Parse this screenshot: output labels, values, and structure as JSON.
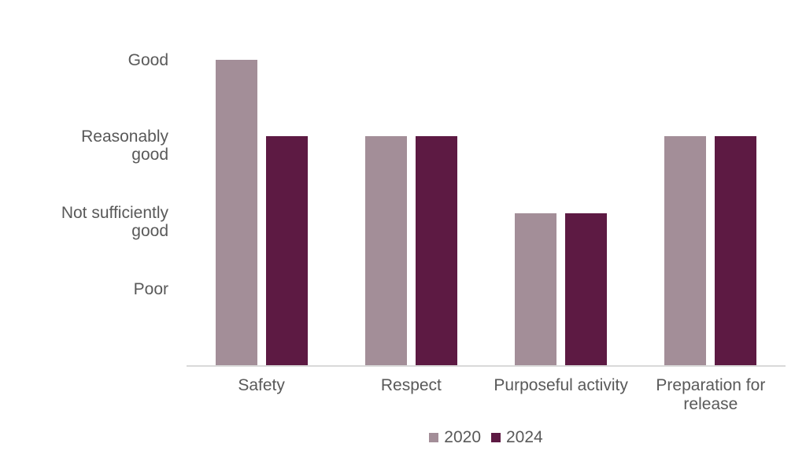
{
  "chart_data": {
    "type": "bar",
    "title": "",
    "categories": [
      "Safety",
      "Respect",
      "Purposeful activity",
      "Preparation for release"
    ],
    "series": [
      {
        "name": "2020",
        "color": "#a38e98",
        "values": [
          4,
          3,
          2,
          3
        ]
      },
      {
        "name": "2024",
        "color": "#5d1a43",
        "values": [
          3,
          3,
          2,
          3
        ]
      }
    ],
    "y_tick_labels": [
      {
        "value": 4,
        "lines": [
          "Good"
        ]
      },
      {
        "value": 3,
        "lines": [
          "Reasonably",
          "good"
        ]
      },
      {
        "value": 2,
        "lines": [
          "Not sufficiently",
          "good"
        ]
      },
      {
        "value": 1,
        "lines": [
          "Poor"
        ]
      }
    ],
    "value_scale_meaning": {
      "4": "Good",
      "3": "Reasonably good",
      "2": "Not sufficiently good",
      "1": "Poor"
    },
    "ylim": [
      0,
      4
    ],
    "grid": false,
    "legend_position": "bottom",
    "legend_labels": [
      "2020",
      "2024"
    ],
    "colors": {
      "axis_line": "#d9d9d9",
      "text": "#595959",
      "background": "#ffffff"
    }
  }
}
